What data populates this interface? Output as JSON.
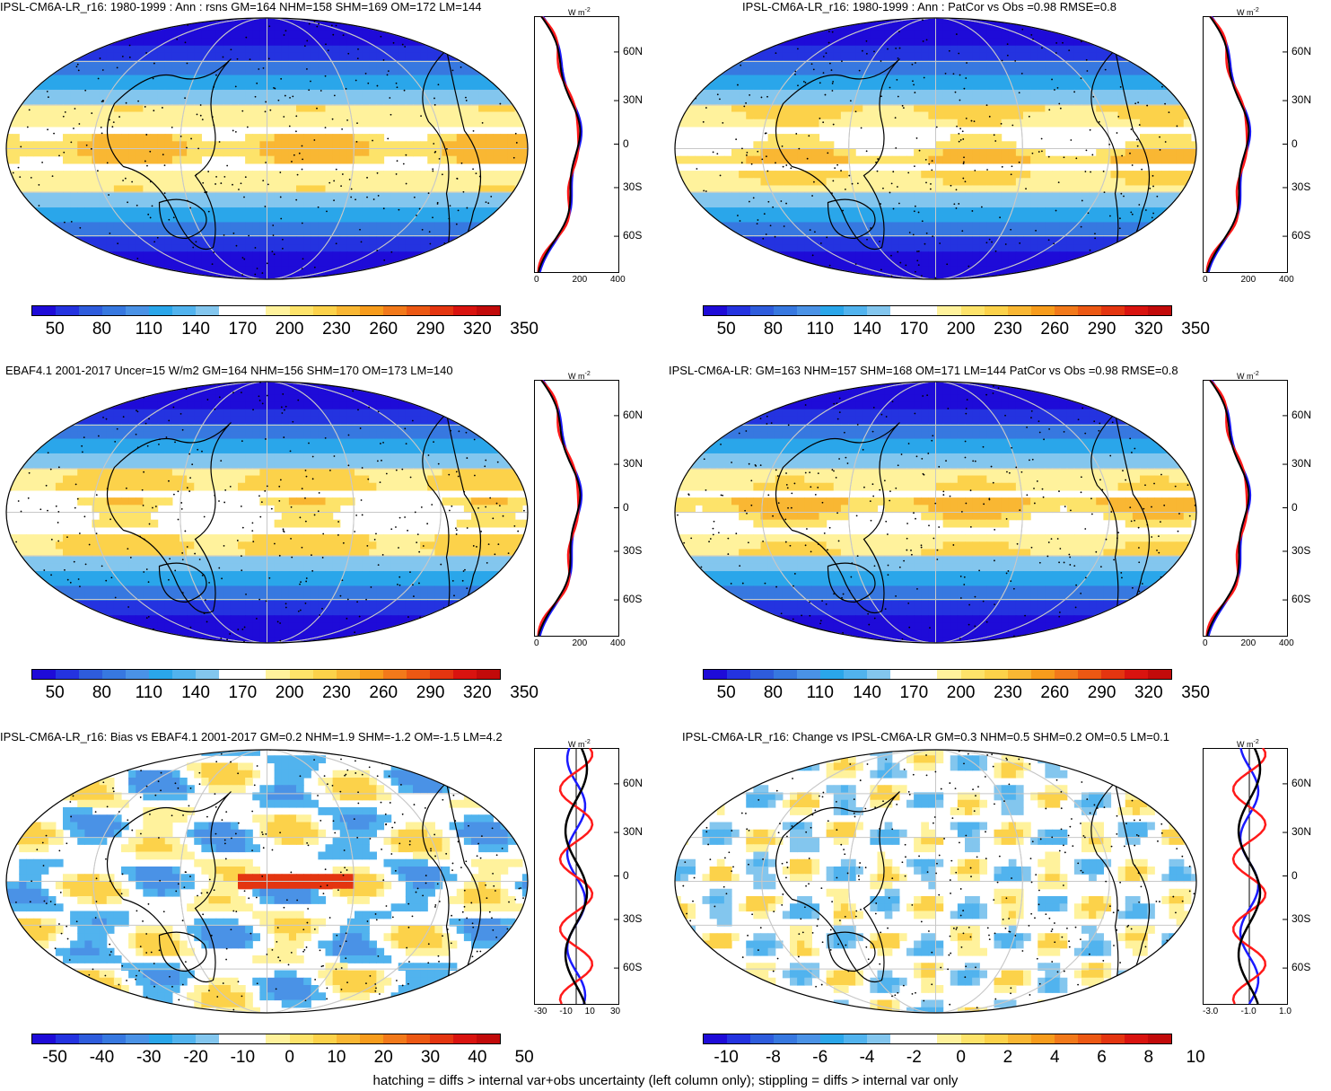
{
  "panels": [
    {
      "id": "p1",
      "title": "IPSL-CM6A-LR_r16: 1980-1999 : Ann : rsns GM=164 NHM=158 SHM=169 OM=172 LM=144",
      "colorbar_labels": [
        "50",
        "80",
        "110",
        "140",
        "170",
        "200",
        "230",
        "260",
        "290",
        "320",
        "350"
      ],
      "profile_units": "W m",
      "profile_units_sup": "-2",
      "profile_xticks": [
        "0",
        "200",
        "400"
      ],
      "profile_lat_labels": [
        "60N",
        "30N",
        "0",
        "30S",
        "60S"
      ],
      "kind": "abs"
    },
    {
      "id": "p2",
      "title": "IPSL-CM6A-LR_r16: 1980-1999 : Ann : PatCor vs Obs =0.98 RMSE=0.8",
      "colorbar_labels": [
        "50",
        "80",
        "110",
        "140",
        "170",
        "200",
        "230",
        "260",
        "290",
        "320",
        "350"
      ],
      "profile_units": "W m",
      "profile_units_sup": "-2",
      "profile_xticks": [
        "0",
        "200",
        "400"
      ],
      "profile_lat_labels": [
        "60N",
        "30N",
        "0",
        "30S",
        "60S"
      ],
      "kind": "abs"
    },
    {
      "id": "p3",
      "title": "EBAF4.1 2001-2017 Uncer=15 W/m2 GM=164 NHM=156 SHM=170 OM=173 LM=140",
      "colorbar_labels": [
        "50",
        "80",
        "110",
        "140",
        "170",
        "200",
        "230",
        "260",
        "290",
        "320",
        "350"
      ],
      "profile_units": "W m",
      "profile_units_sup": "-2",
      "profile_xticks": [
        "0",
        "200",
        "400"
      ],
      "profile_lat_labels": [
        "60N",
        "30N",
        "0",
        "30S",
        "60S"
      ],
      "kind": "abs"
    },
    {
      "id": "p4",
      "title": "IPSL-CM6A-LR: GM=163 NHM=157 SHM=168 OM=171 LM=144 PatCor vs Obs =0.98 RMSE=0.8",
      "colorbar_labels": [
        "50",
        "80",
        "110",
        "140",
        "170",
        "200",
        "230",
        "260",
        "290",
        "320",
        "350"
      ],
      "profile_units": "W m",
      "profile_units_sup": "-2",
      "profile_xticks": [
        "0",
        "200",
        "400"
      ],
      "profile_lat_labels": [
        "60N",
        "30N",
        "0",
        "30S",
        "60S"
      ],
      "kind": "abs"
    },
    {
      "id": "p5",
      "title": "IPSL-CM6A-LR_r16: Bias vs EBAF4.1 2001-2017 GM=0.2 NHM=1.9 SHM=-1.2 OM=-1.5 LM=4.2",
      "colorbar_labels": [
        "-50",
        "-40",
        "-30",
        "-20",
        "-10",
        "0",
        "10",
        "20",
        "30",
        "40",
        "50"
      ],
      "profile_units": "W m",
      "profile_units_sup": "-2",
      "profile_xticks": [
        "-30",
        "-10",
        "10",
        "30"
      ],
      "profile_lat_labels": [
        "60N",
        "30N",
        "0",
        "30S",
        "60S"
      ],
      "kind": "bias"
    },
    {
      "id": "p6",
      "title": "IPSL-CM6A-LR_r16: Change vs IPSL-CM6A-LR GM=0.3 NHM=0.5 SHM=0.2 OM=0.5 LM=0.1",
      "colorbar_labels": [
        "-10",
        "-8",
        "-6",
        "-4",
        "-2",
        "0",
        "2",
        "4",
        "6",
        "8",
        "10"
      ],
      "profile_units": "W m",
      "profile_units_sup": "-2",
      "profile_xticks": [
        "-3.0",
        "-1.0",
        "1.0"
      ],
      "profile_lat_labels": [
        "60N",
        "30N",
        "0",
        "30S",
        "60S"
      ],
      "kind": "change"
    }
  ],
  "colorbar_colors": [
    "#1e0bd8",
    "#2433e0",
    "#2e5cdc",
    "#3778e0",
    "#4a92e6",
    "#2aa6ea",
    "#51b3ee",
    "#83c6ee",
    "#ffffff",
    "#ffffff",
    "#fff29c",
    "#fde36a",
    "#fcd24a",
    "#f9b733",
    "#f79c1c",
    "#f2791a",
    "#ec5813",
    "#e43510",
    "#d9130f",
    "#c20a0a"
  ],
  "profile_series_colors": {
    "model": "#000000",
    "obs": "#ff1a1a",
    "alt": "#1a1aff"
  },
  "footer": "hatching = diffs > internal var+obs uncertainty (left column only); stippling = diffs > internal var only"
}
